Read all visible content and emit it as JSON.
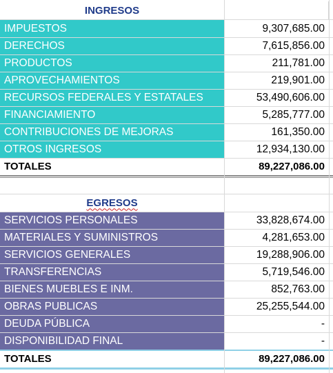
{
  "ingresos": {
    "header": "INGRESOS",
    "rows": [
      {
        "label": "IMPUESTOS",
        "value": "9,307,685.00"
      },
      {
        "label": "DERECHOS",
        "value": "7,615,856.00"
      },
      {
        "label": "PRODUCTOS",
        "value": "211,781.00"
      },
      {
        "label": "APROVECHAMIENTOS",
        "value": "219,901.00"
      },
      {
        "label": "RECURSOS FEDERALES Y ESTATALES",
        "value": "53,490,606.00"
      },
      {
        "label": "FINANCIAMIENTO",
        "value": "5,285,777.00"
      },
      {
        "label": "CONTRIBUCIONES DE MEJORAS",
        "value": "161,350.00"
      },
      {
        "label": "OTROS INGRESOS",
        "value": "12,934,130.00"
      }
    ],
    "total_label": "TOTALES",
    "total_value": "89,227,086.00",
    "color": "#31c9c9"
  },
  "egresos": {
    "header": "EGRESOS",
    "rows": [
      {
        "label": "SERVICIOS PERSONALES",
        "value": "33,828,674.00"
      },
      {
        "label": "MATERIALES Y SUMINISTROS",
        "value": "4,281,653.00"
      },
      {
        "label": "SERVICIOS GENERALES",
        "value": "19,288,906.00"
      },
      {
        "label": "TRANSFERENCIAS",
        "value": "5,719,546.00"
      },
      {
        "label": "BIENES MUEBLES E INM.",
        "value": "852,763.00"
      },
      {
        "label": "OBRAS PUBLICAS",
        "value": "25,255,544.00"
      },
      {
        "label": "DEUDA PÚBLICA",
        "value": "-"
      },
      {
        "label": "DISPONIBILIDAD FINAL",
        "value": "-"
      }
    ],
    "total_label": "TOTALES",
    "total_value": "89,227,086.00",
    "color": "#6b6aa1"
  }
}
